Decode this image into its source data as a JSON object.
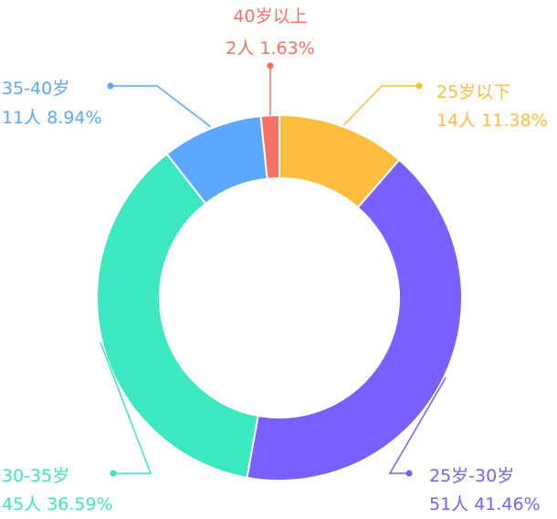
{
  "chart_data": {
    "type": "donut",
    "title": "",
    "total_unit": "人",
    "slices": [
      {
        "category": "25岁以下",
        "count": 14,
        "count_label": "14人",
        "percent": 11.38,
        "percent_label": "11.38%",
        "color": "#FFBD40"
      },
      {
        "category": "25岁-30岁",
        "count": 51,
        "count_label": "51人",
        "percent": 41.46,
        "percent_label": "41.46%",
        "color": "#7A5FFF"
      },
      {
        "category": "30-35岁",
        "count": 45,
        "count_label": "45人",
        "percent": 36.59,
        "percent_label": "36.59%",
        "color": "#3BE8C0"
      },
      {
        "category": "35-40岁",
        "count": 11,
        "count_label": "11人",
        "percent": 8.94,
        "percent_label": "8.94%",
        "color": "#5AA8FF"
      },
      {
        "category": "40岁以上",
        "count": 2,
        "count_label": "2人",
        "percent": 1.63,
        "percent_label": "1.63%",
        "color": "#F87166"
      }
    ],
    "legend": "none",
    "label_placement": "outside-with-leader-lines"
  }
}
